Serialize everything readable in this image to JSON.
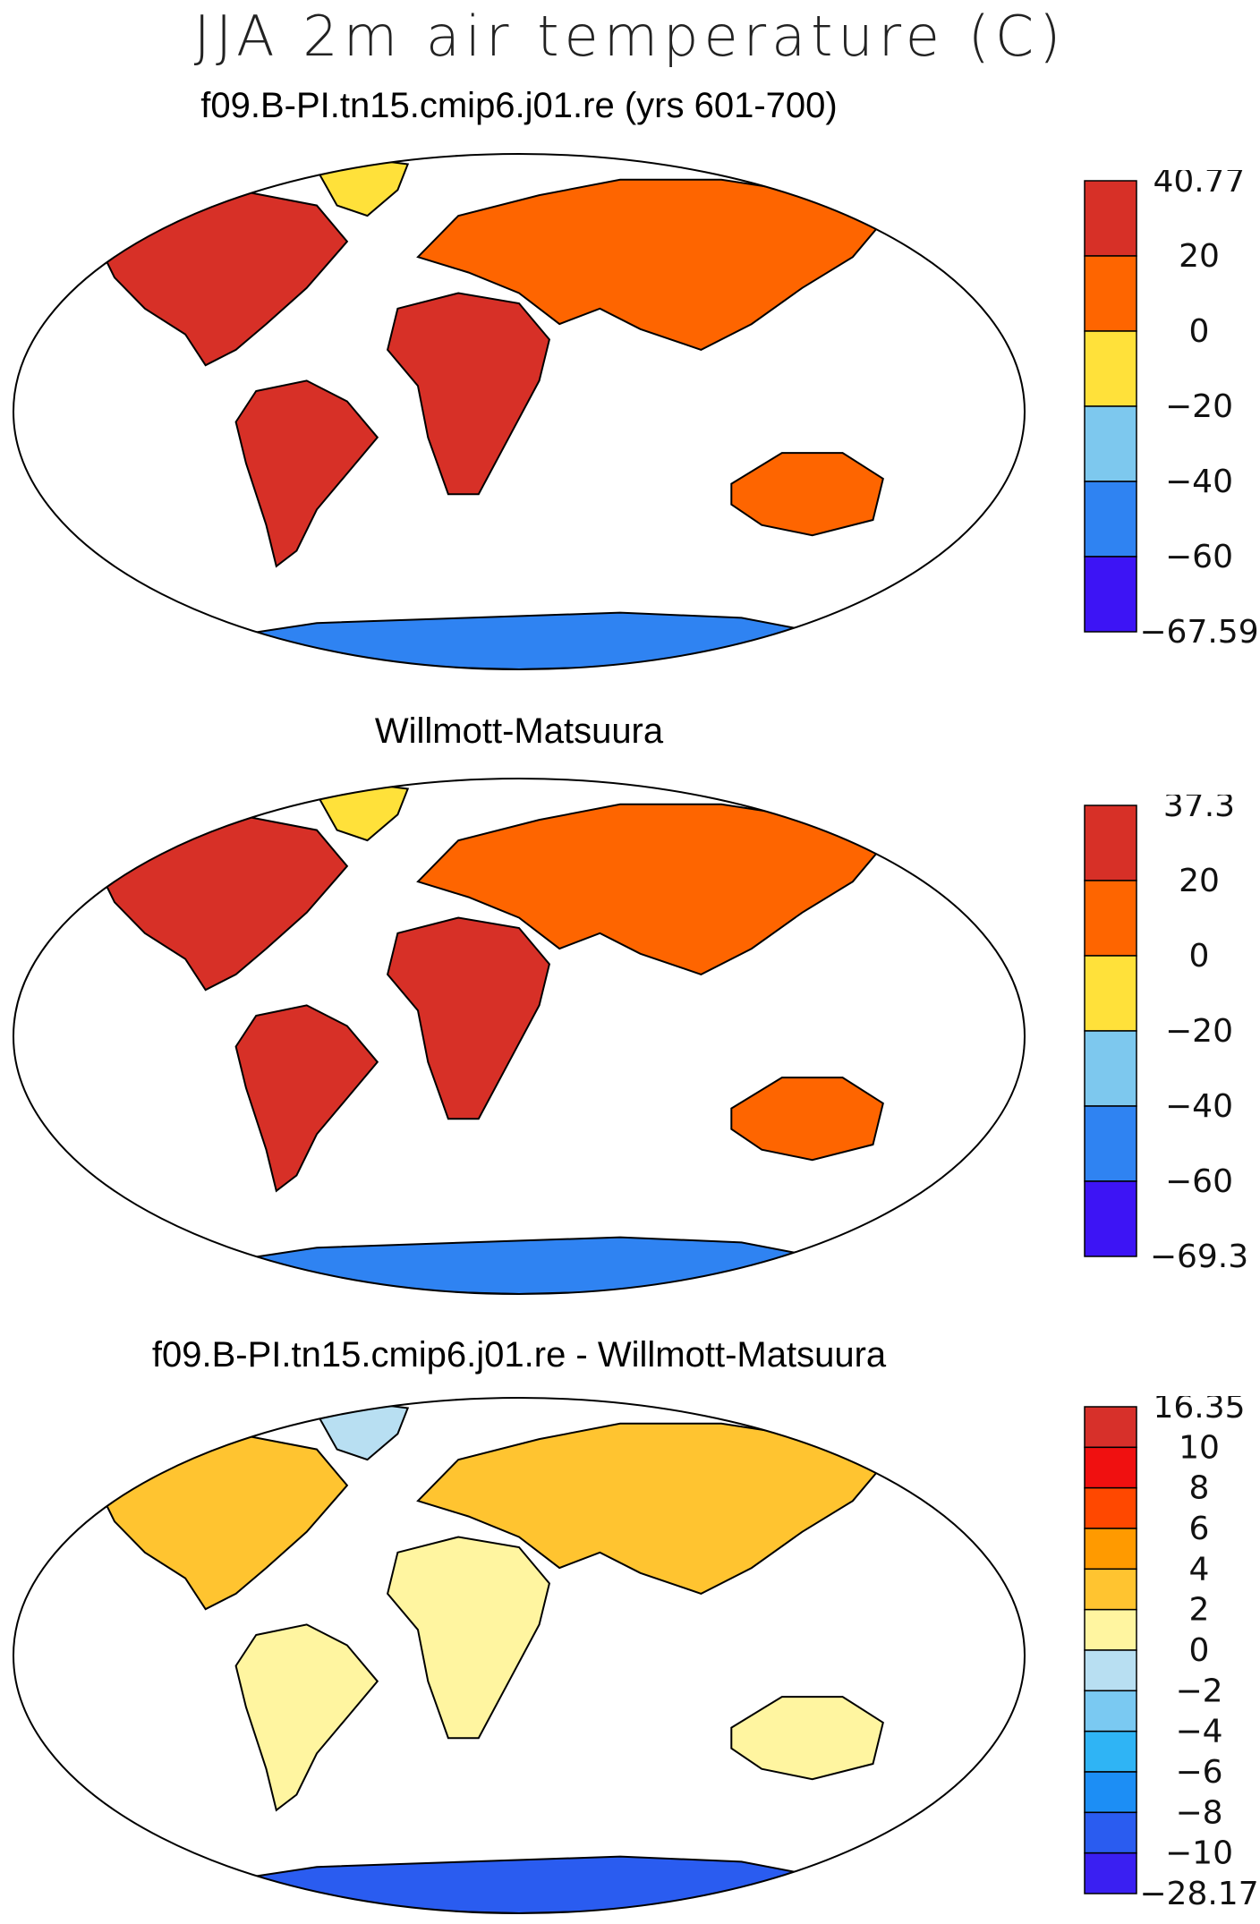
{
  "figure": {
    "title": "JJA 2m air temperature (C)"
  },
  "chart_data": [
    {
      "type": "heatmap",
      "title": "f09.B-PI.tn15.cmip6.j01.re (yrs 601-700)",
      "projection": "Robinson world map",
      "variable": "JJA 2m air temperature (C)",
      "colorbar": {
        "levels": [
          "40.77",
          "20",
          "0",
          "−20",
          "−40",
          "−60",
          "−67.59"
        ],
        "colors": [
          "#d73027",
          "#fe6500",
          "#ffe13a",
          "#7dc8ee",
          "#2f83f2",
          "#3d14f5"
        ]
      },
      "regions": [
        {
          "name": "North America",
          "level": "20 to 40.77"
        },
        {
          "name": "South America",
          "level": "20 to 40.77"
        },
        {
          "name": "Africa",
          "level": "20 to 40.77"
        },
        {
          "name": "Eurasia",
          "level": "0 to 20"
        },
        {
          "name": "Australia",
          "level": "0 to 20"
        },
        {
          "name": "Greenland",
          "level": "-20 to 0"
        },
        {
          "name": "Antarctica",
          "level": "-67.59 to -20"
        }
      ]
    },
    {
      "type": "heatmap",
      "title": "Willmott-Matsuura",
      "projection": "Robinson world map",
      "variable": "JJA 2m air temperature (C)",
      "colorbar": {
        "levels": [
          "37.3",
          "20",
          "0",
          "−20",
          "−40",
          "−60",
          "−69.3"
        ],
        "colors": [
          "#d73027",
          "#fe6500",
          "#ffe13a",
          "#7dc8ee",
          "#2f83f2",
          "#3d14f5"
        ]
      },
      "regions": [
        {
          "name": "North America",
          "level": "20 to 37.3"
        },
        {
          "name": "South America",
          "level": "20 to 37.3"
        },
        {
          "name": "Africa",
          "level": "20 to 37.3"
        },
        {
          "name": "Eurasia",
          "level": "0 to 20"
        },
        {
          "name": "Australia",
          "level": "0 to 20"
        },
        {
          "name": "Greenland",
          "level": "-20 to 0"
        },
        {
          "name": "Antarctica",
          "level": "-69.3 to -20"
        }
      ]
    },
    {
      "type": "heatmap",
      "title": "f09.B-PI.tn15.cmip6.j01.re - Willmott-Matsuura",
      "projection": "Robinson world map",
      "variable": "JJA 2m air temperature difference (C)",
      "colorbar": {
        "levels": [
          "16.35",
          "10",
          "8",
          "6",
          "4",
          "2",
          "0",
          "−2",
          "−4",
          "−6",
          "−8",
          "−10",
          "−28.17"
        ],
        "colors": [
          "#d7302a",
          "#f01010",
          "#ff4800",
          "#ff9a00",
          "#ffc430",
          "#fff5a0",
          "#b8dff2",
          "#7ac9f2",
          "#2fb4f5",
          "#1c8ef5",
          "#2a5cf0",
          "#3a1ff2"
        ]
      },
      "regions": [
        {
          "name": "North America",
          "level": "0 to 4"
        },
        {
          "name": "South America",
          "level": "-2 to 2"
        },
        {
          "name": "Africa",
          "level": "-2 to 4"
        },
        {
          "name": "Eurasia",
          "level": "-4 to 8"
        },
        {
          "name": "Australia",
          "level": "0 to 2"
        },
        {
          "name": "Greenland",
          "level": "-4 to 2"
        },
        {
          "name": "Antarctica",
          "level": "-28.17 to 10"
        }
      ]
    }
  ]
}
